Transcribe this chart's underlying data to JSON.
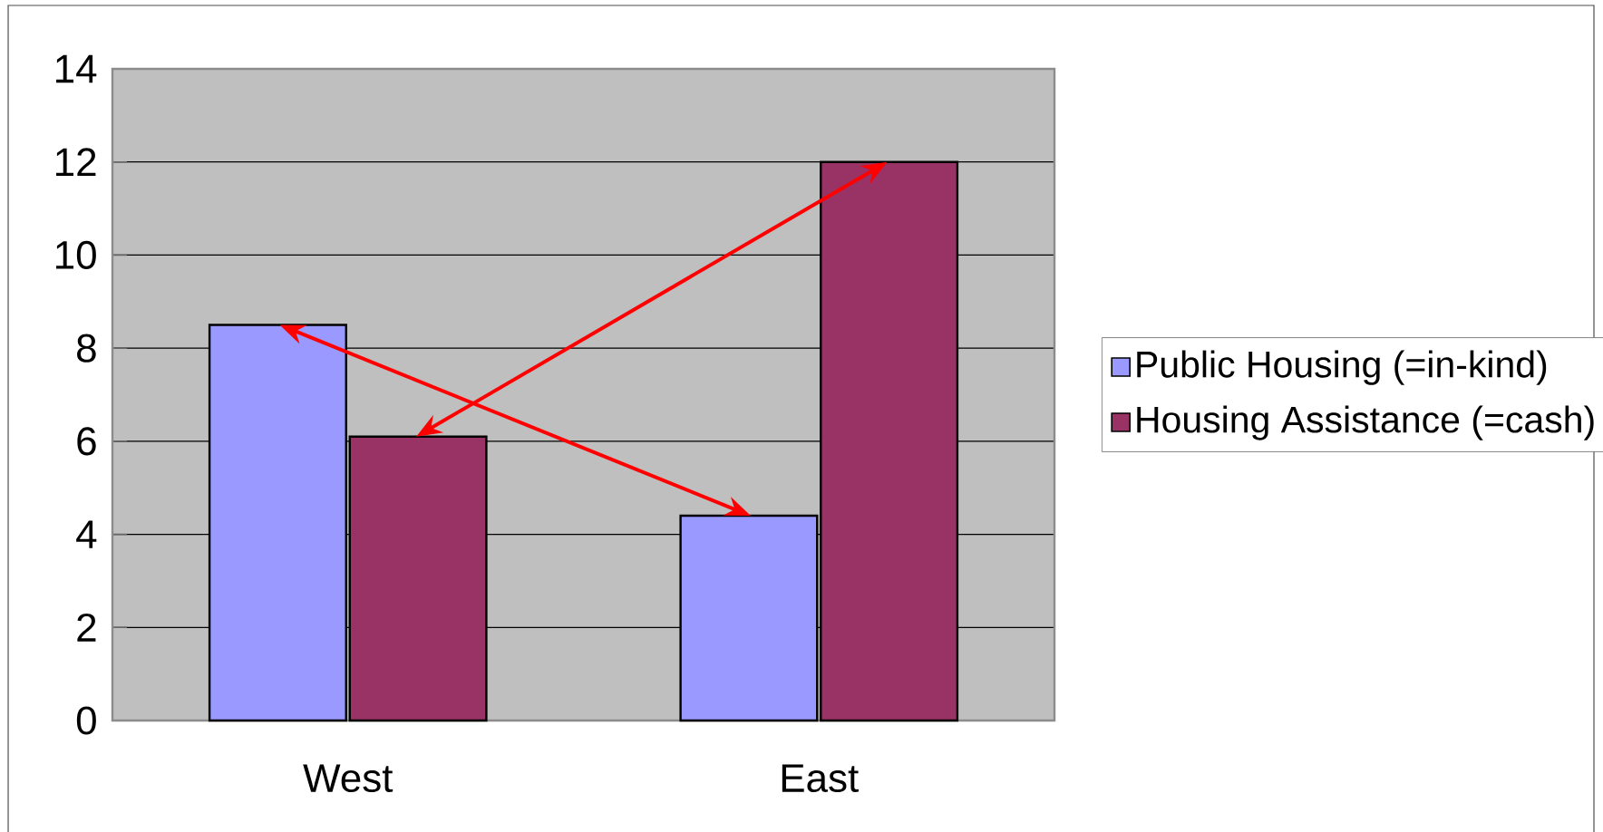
{
  "chart_data": {
    "type": "bar",
    "categories": [
      "West",
      "East"
    ],
    "series": [
      {
        "name": "Public Housing (=in-kind)",
        "color": "#9999ff",
        "values": [
          8.5,
          4.4
        ]
      },
      {
        "name": "Housing Assistance (=cash)",
        "color": "#993366",
        "values": [
          6.1,
          12
        ]
      }
    ],
    "ylim": [
      0,
      14
    ],
    "yticks": [
      0,
      2,
      4,
      6,
      8,
      10,
      12,
      14
    ],
    "grid": "y",
    "legend": "right"
  }
}
